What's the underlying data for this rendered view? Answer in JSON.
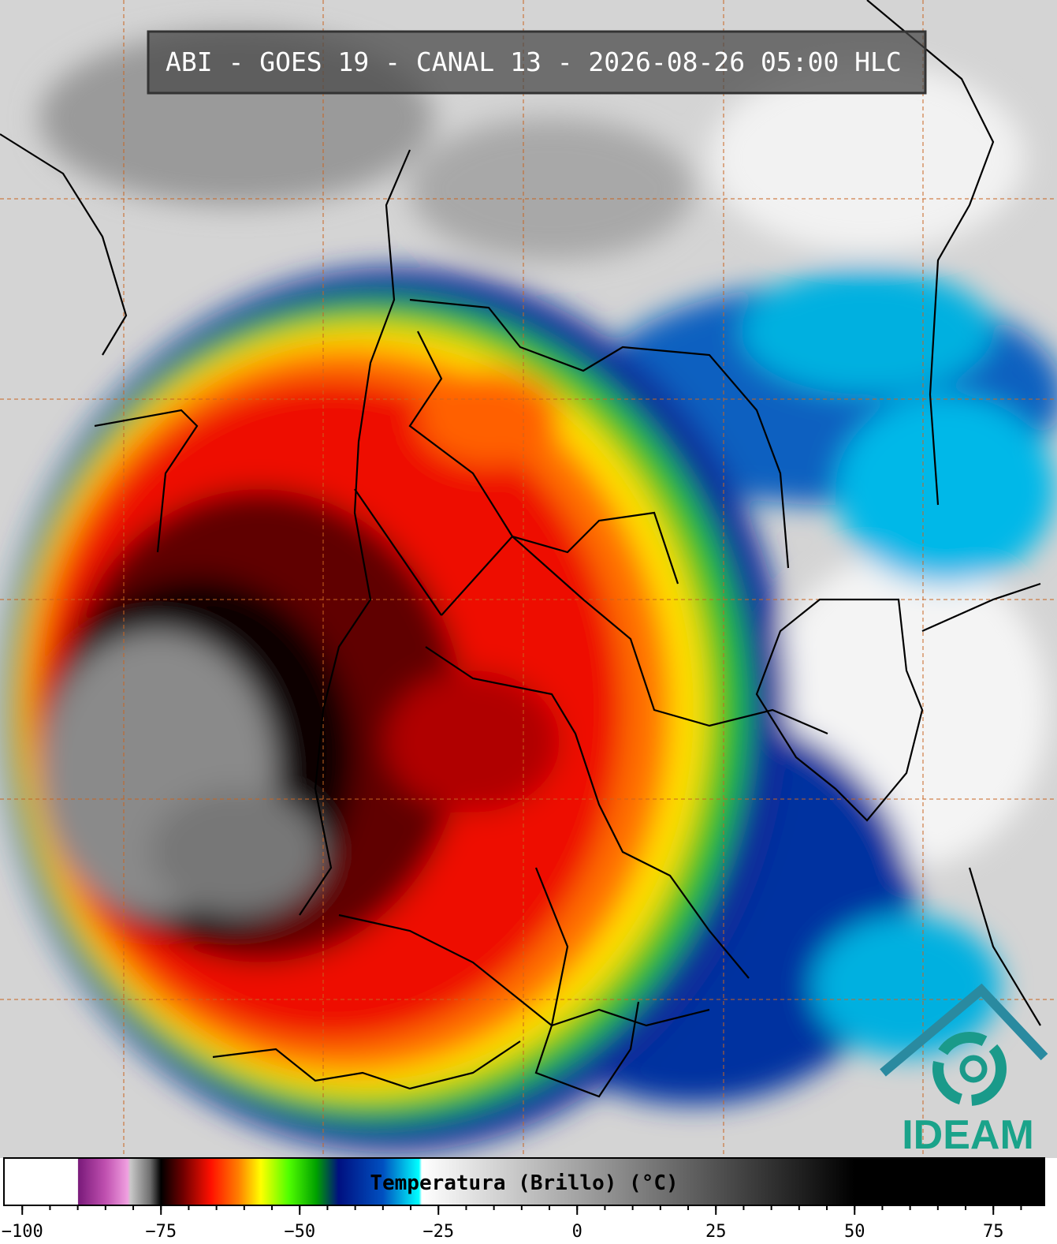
{
  "header": {
    "title": "ABI - GOES 19 - CANAL 13 - 2026-08-26 05:00 HLC"
  },
  "colorbar": {
    "label": "Temperatura (Brillo) (°C)",
    "range": [
      -103.3,
      84.2
    ],
    "ticks": [
      {
        "value": -100,
        "label": "−100"
      },
      {
        "value": -75,
        "label": "−75"
      },
      {
        "value": -50,
        "label": "−50"
      },
      {
        "value": -25,
        "label": "−25"
      },
      0,
      25,
      50,
      75
    ],
    "minor_ticks": [
      -100,
      -95,
      -90,
      -85,
      -80,
      -75,
      -70,
      -65,
      -60,
      -55,
      -50,
      -45,
      -40,
      -35,
      -30,
      -25,
      -20,
      -15,
      -10,
      -5,
      0,
      5,
      10,
      15,
      20,
      25,
      30,
      35,
      40,
      45,
      50,
      55,
      60,
      65,
      70,
      75,
      80
    ],
    "stops": [
      {
        "value": -103.3,
        "color": "#ffffff"
      },
      {
        "value": -90,
        "color": "#ffffff"
      },
      {
        "value": -89.9,
        "color": "#7a1a7a"
      },
      {
        "value": -85,
        "color": "#c050b0"
      },
      {
        "value": -81,
        "color": "#f0a0e0"
      },
      {
        "value": -80.5,
        "color": "#c8c8c8"
      },
      {
        "value": -77,
        "color": "#707070"
      },
      {
        "value": -75,
        "color": "#000000"
      },
      {
        "value": -71,
        "color": "#700000"
      },
      {
        "value": -66,
        "color": "#ff1000"
      },
      {
        "value": -61,
        "color": "#ff8000"
      },
      {
        "value": -57,
        "color": "#ffff00"
      },
      {
        "value": -52,
        "color": "#50ff00"
      },
      {
        "value": -47,
        "color": "#00a000"
      },
      {
        "value": -43,
        "color": "#001080"
      },
      {
        "value": -35,
        "color": "#0050c0"
      },
      {
        "value": -28.5,
        "color": "#00ffff"
      },
      {
        "value": -28,
        "color": "#ffffff"
      },
      {
        "value": 50,
        "color": "#000000"
      },
      {
        "value": 84.2,
        "color": "#000000"
      }
    ]
  },
  "logo": {
    "text": "IDEAM"
  }
}
